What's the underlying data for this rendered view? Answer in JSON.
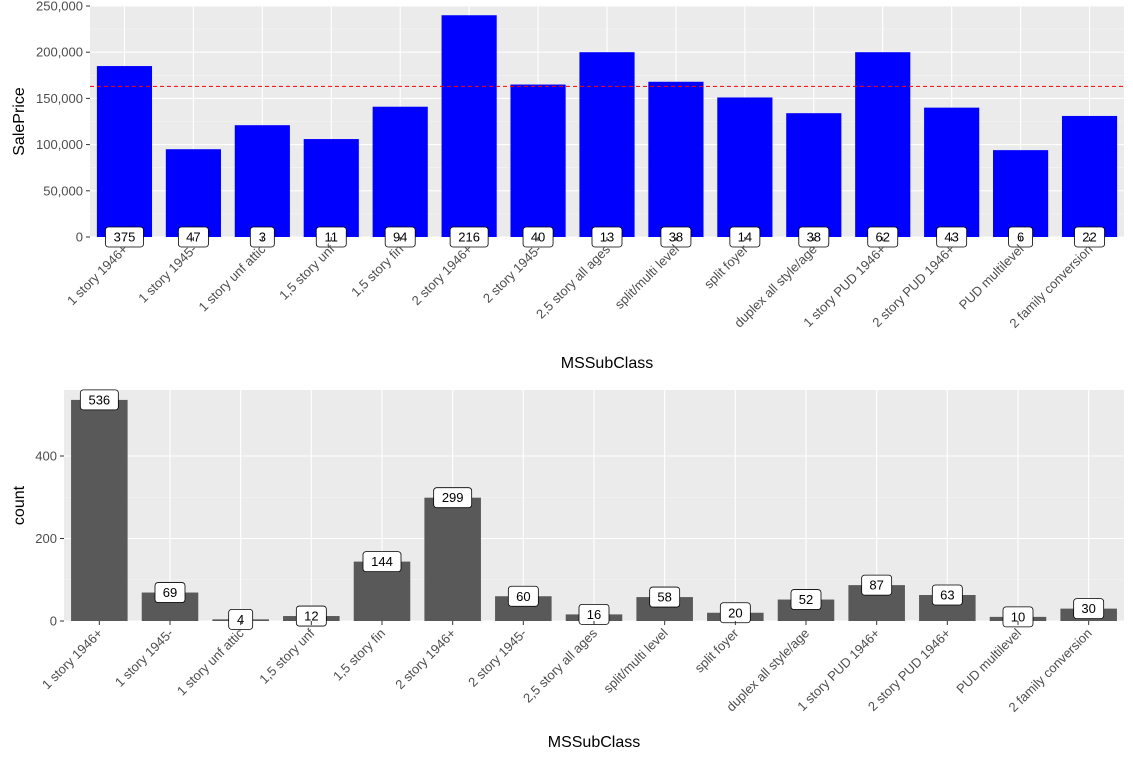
{
  "chart_data": [
    {
      "type": "bar",
      "xlabel": "MSSubClass",
      "ylabel": "SalePrice",
      "ylim": [
        0,
        250000
      ],
      "yticks": [
        "0",
        "50,000",
        "100,000",
        "150,000",
        "200,000",
        "250,000"
      ],
      "ytick_values": [
        0,
        50000,
        100000,
        150000,
        200000,
        250000
      ],
      "bar_color": "#0000ff",
      "reference_line": {
        "value": 163000,
        "color": "#ff0000",
        "style": "dashed"
      },
      "categories": [
        "1 story 1946+",
        "1 story 1945-",
        "1 story unf attic",
        "1,5 story unf",
        "1,5 story fin",
        "2 story 1946+",
        "2 story 1945-",
        "2,5 story all ages",
        "split/multi level",
        "split foyer",
        "duplex all style/age",
        "1 story PUD 1946+",
        "2 story PUD 1946+",
        "PUD multilevel",
        "2 family conversion"
      ],
      "values": [
        185000,
        95000,
        121000,
        106000,
        141000,
        240000,
        165000,
        200000,
        168000,
        151000,
        134000,
        200000,
        140000,
        94000,
        131000
      ],
      "labels": [
        "375",
        "47",
        "3",
        "11",
        "94",
        "216",
        "40",
        "13",
        "38",
        "14",
        "38",
        "62",
        "43",
        "6",
        "22"
      ],
      "grid": true
    },
    {
      "type": "bar",
      "xlabel": "MSSubClass",
      "ylabel": "count",
      "ylim": [
        0,
        560
      ],
      "yticks": [
        "0",
        "200",
        "400"
      ],
      "ytick_values": [
        0,
        200,
        400
      ],
      "bar_color": "#595959",
      "categories": [
        "1 story 1946+",
        "1 story 1945-",
        "1 story unf attic",
        "1,5 story unf",
        "1,5 story fin",
        "2 story 1946+",
        "2 story 1945-",
        "2,5 story all ages",
        "split/multi level",
        "split foyer",
        "duplex all style/age",
        "1 story PUD 1946+",
        "2 story PUD 1946+",
        "PUD multilevel",
        "2 family conversion"
      ],
      "values": [
        536,
        69,
        4,
        12,
        144,
        299,
        60,
        16,
        58,
        20,
        52,
        87,
        63,
        10,
        30
      ],
      "labels": [
        "536",
        "69",
        "4",
        "12",
        "144",
        "299",
        "60",
        "16",
        "58",
        "20",
        "52",
        "87",
        "63",
        "10",
        "30"
      ],
      "grid": true
    }
  ]
}
